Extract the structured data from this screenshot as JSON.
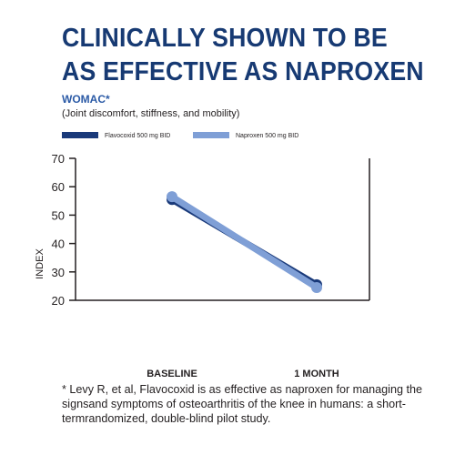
{
  "headline": {
    "line1": "CLINICALLY SHOWN TO BE",
    "line2": "AS EFFECTIVE AS NAPROXEN"
  },
  "subtitle": "WOMAC*",
  "description": "(Joint discomfort, stiffness, and mobility)",
  "colors": {
    "headline": "#173a73",
    "subtitle": "#2b5aa6",
    "flavocoxid": "#1a3a7a",
    "naproxen": "#7f9fd6"
  },
  "chart_data": {
    "type": "line",
    "ylabel": "INDEX",
    "xlabel": "",
    "categories": [
      "BASELINE",
      "1 MONTH"
    ],
    "ylim": [
      20,
      70
    ],
    "yticks": [
      20,
      30,
      40,
      50,
      60,
      70
    ],
    "grid": false,
    "legend_position": "top",
    "series": [
      {
        "name": "Flavocoxid 500 mg BID",
        "values": [
          55.5,
          25.5
        ],
        "color": "#1a3a7a"
      },
      {
        "name": "Naproxen 500 mg BID",
        "values": [
          56.5,
          24.5
        ],
        "color": "#7f9fd6"
      }
    ]
  },
  "footnote": "* Levy R, et al, Flavocoxid is as effective as naproxen for managing the signsand symptoms of osteoarthritis of the knee in humans: a short-termrandomized, double-blind pilot study."
}
